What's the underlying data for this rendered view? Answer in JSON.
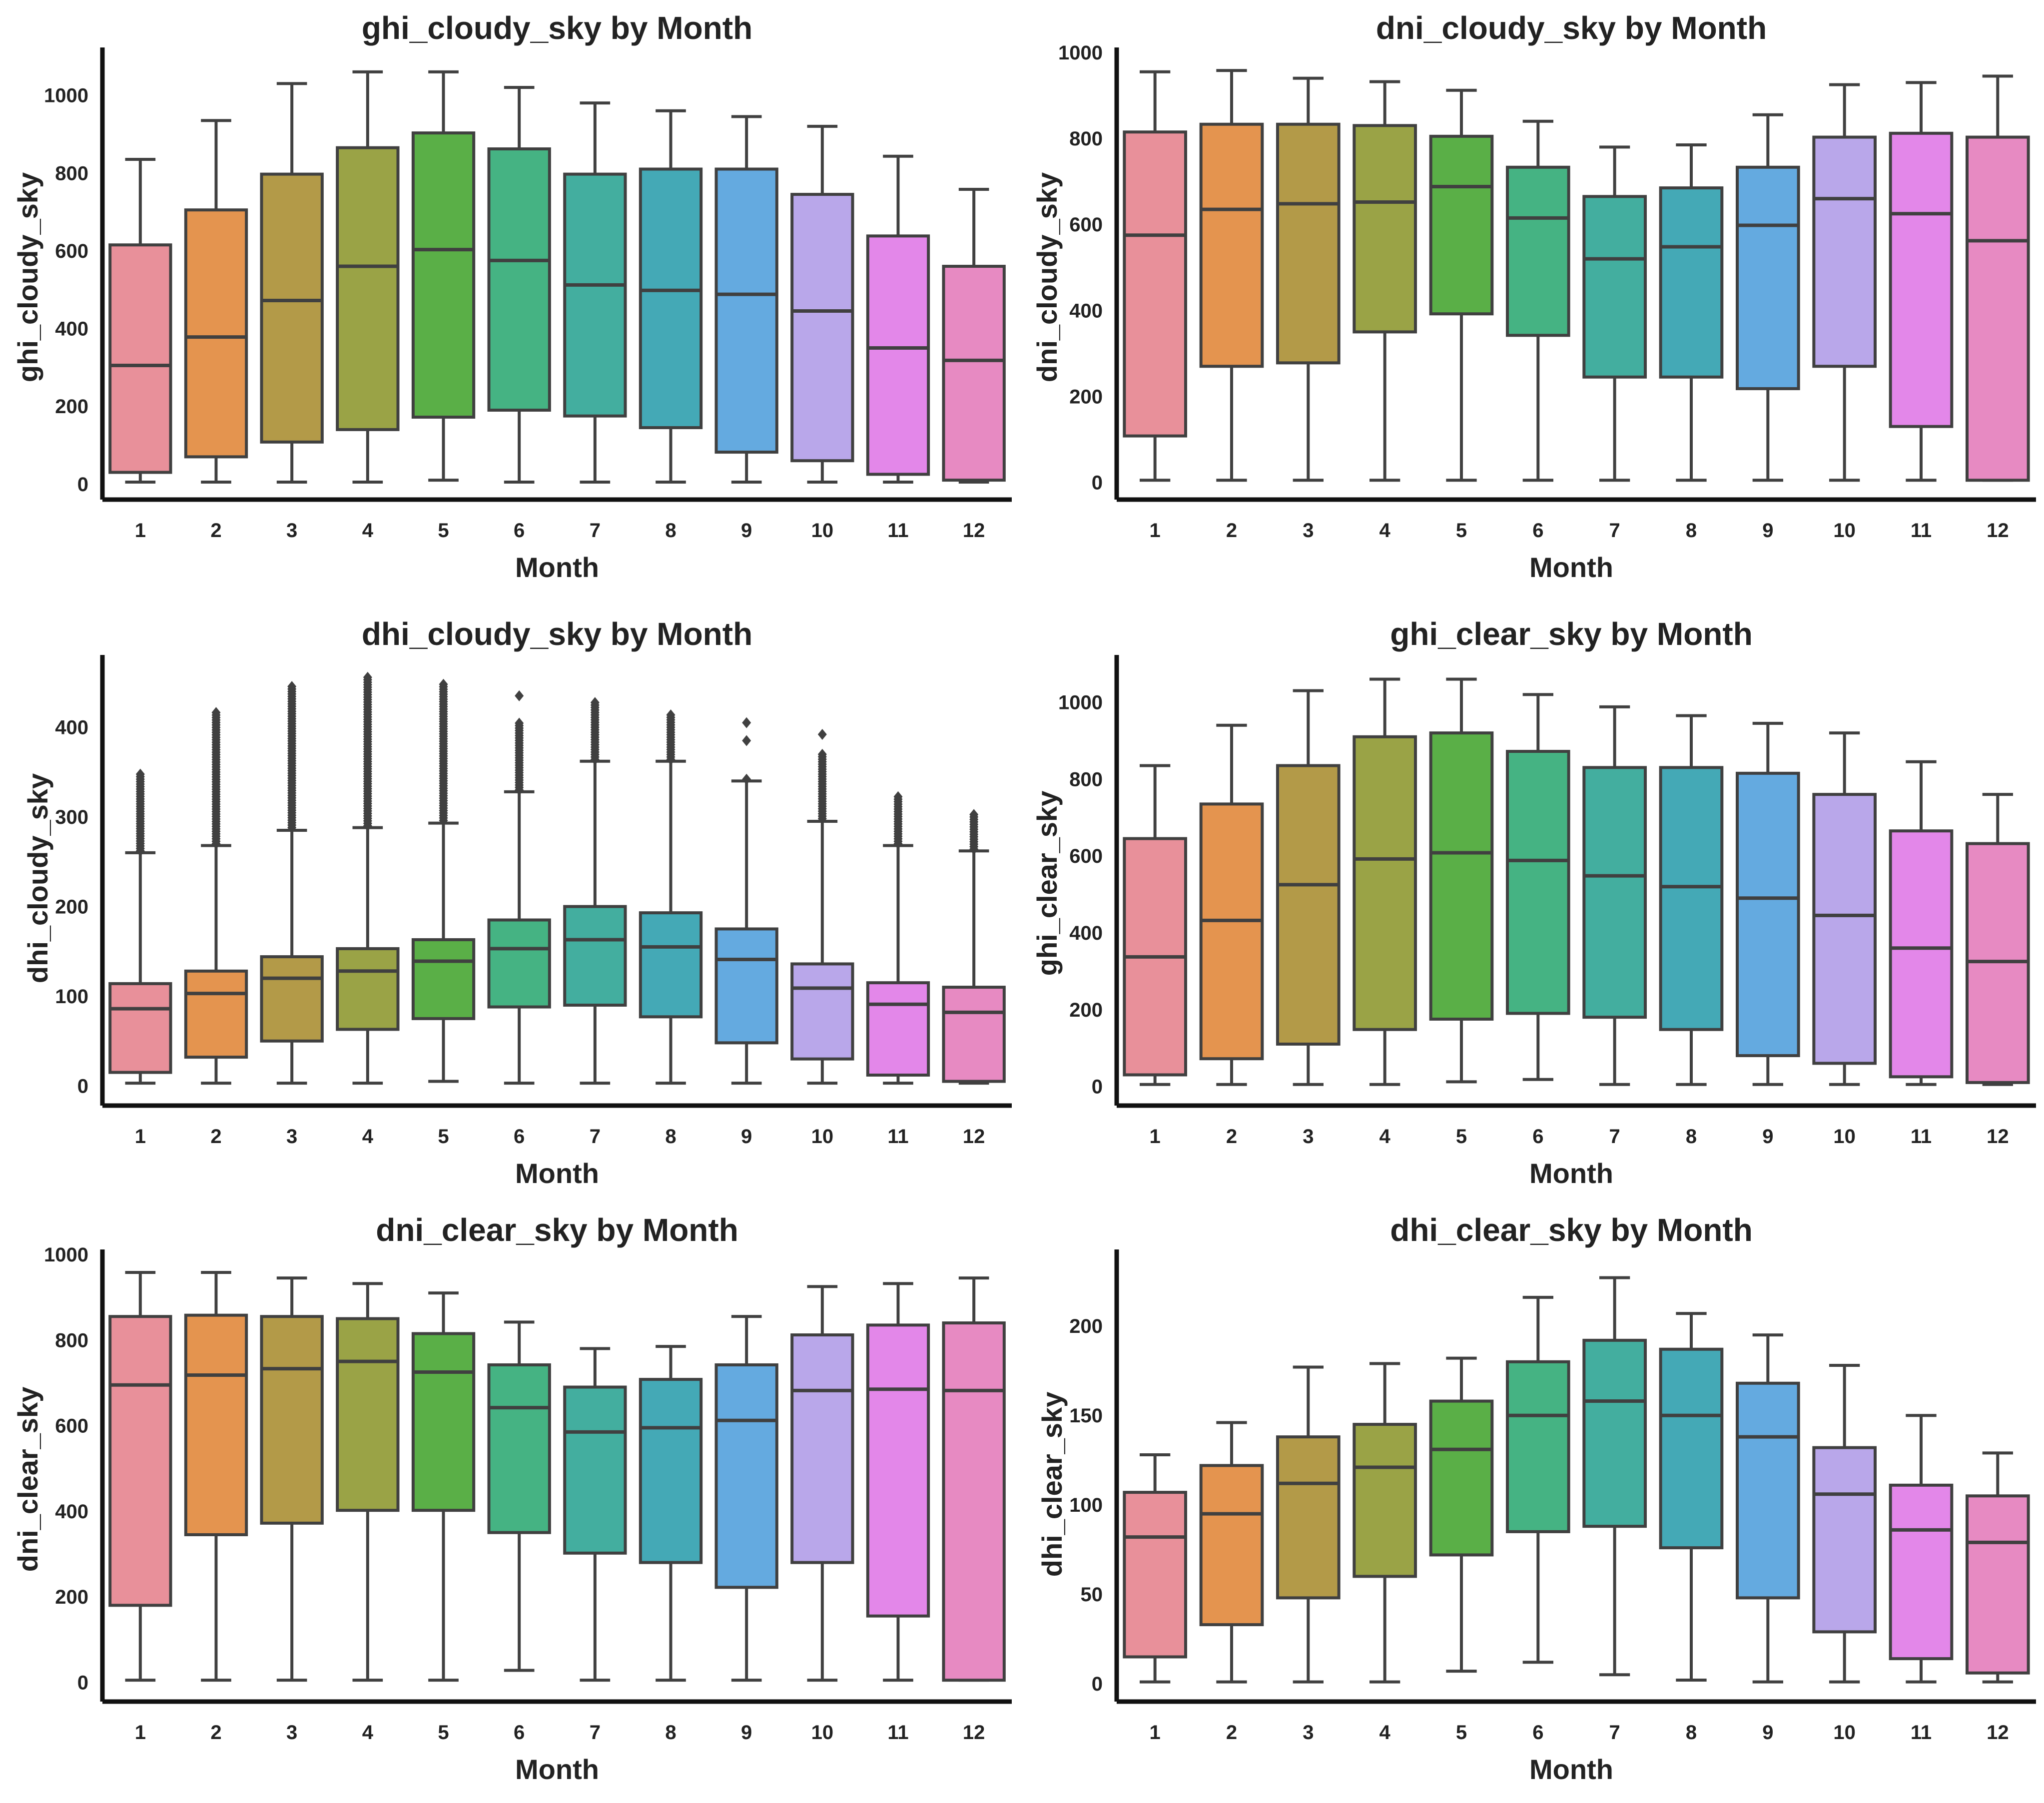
{
  "chart_data": [
    {
      "type": "box",
      "title": "ghi_cloudy_sky by Month",
      "xlabel": "Month",
      "ylabel": "ghi_cloudy_sky",
      "ylim": [
        -40,
        1110
      ],
      "yticks": [
        "0",
        "200",
        "400",
        "600",
        "800",
        "1000"
      ],
      "ytick_values": [
        0,
        200,
        400,
        600,
        800,
        1000
      ],
      "categories": [
        "1",
        "2",
        "3",
        "4",
        "5",
        "6",
        "7",
        "8",
        "9",
        "10",
        "11",
        "12"
      ],
      "boxes": [
        {
          "whislo": 5,
          "q1": 30,
          "med": 305,
          "q3": 615,
          "whishi": 835
        },
        {
          "whislo": 5,
          "q1": 70,
          "med": 378,
          "q3": 705,
          "whishi": 935
        },
        {
          "whislo": 5,
          "q1": 108,
          "med": 472,
          "q3": 797,
          "whishi": 1030
        },
        {
          "whislo": 5,
          "q1": 140,
          "med": 560,
          "q3": 865,
          "whishi": 1060
        },
        {
          "whislo": 10,
          "q1": 172,
          "med": 603,
          "q3": 903,
          "whishi": 1060
        },
        {
          "whislo": 5,
          "q1": 190,
          "med": 575,
          "q3": 862,
          "whishi": 1020
        },
        {
          "whislo": 5,
          "q1": 175,
          "med": 512,
          "q3": 797,
          "whishi": 980
        },
        {
          "whislo": 5,
          "q1": 145,
          "med": 498,
          "q3": 810,
          "whishi": 960
        },
        {
          "whislo": 5,
          "q1": 82,
          "med": 488,
          "q3": 810,
          "whishi": 945
        },
        {
          "whislo": 5,
          "q1": 60,
          "med": 445,
          "q3": 745,
          "whishi": 920
        },
        {
          "whislo": 5,
          "q1": 25,
          "med": 350,
          "q3": 638,
          "whishi": 843
        },
        {
          "whislo": 5,
          "q1": 10,
          "med": 318,
          "q3": 560,
          "whishi": 758
        }
      ],
      "outliers": [
        [],
        [],
        [],
        [],
        [],
        [],
        [],
        [],
        [],
        [],
        [],
        []
      ]
    },
    {
      "type": "box",
      "title": "dni_cloudy_sky by Month",
      "xlabel": "Month",
      "ylabel": "dni_cloudy_sky",
      "ylim": [
        -40,
        1000
      ],
      "yticks": [
        "0",
        "200",
        "400",
        "600",
        "800",
        "1000"
      ],
      "ytick_values": [
        0,
        200,
        400,
        600,
        800,
        1000
      ],
      "categories": [
        "1",
        "2",
        "3",
        "4",
        "5",
        "6",
        "7",
        "8",
        "9",
        "10",
        "11",
        "12"
      ],
      "boxes": [
        {
          "whislo": 5,
          "q1": 108,
          "med": 575,
          "q3": 815,
          "whishi": 955
        },
        {
          "whislo": 5,
          "q1": 270,
          "med": 635,
          "q3": 833,
          "whishi": 958
        },
        {
          "whislo": 5,
          "q1": 278,
          "med": 648,
          "q3": 833,
          "whishi": 940
        },
        {
          "whislo": 5,
          "q1": 350,
          "med": 652,
          "q3": 830,
          "whishi": 932
        },
        {
          "whislo": 5,
          "q1": 392,
          "med": 688,
          "q3": 805,
          "whishi": 912
        },
        {
          "whislo": 5,
          "q1": 342,
          "med": 615,
          "q3": 733,
          "whishi": 840
        },
        {
          "whislo": 5,
          "q1": 245,
          "med": 520,
          "q3": 665,
          "whishi": 780
        },
        {
          "whislo": 5,
          "q1": 245,
          "med": 548,
          "q3": 685,
          "whishi": 785
        },
        {
          "whislo": 5,
          "q1": 218,
          "med": 598,
          "q3": 733,
          "whishi": 855
        },
        {
          "whislo": 5,
          "q1": 270,
          "med": 660,
          "q3": 803,
          "whishi": 925
        },
        {
          "whislo": 5,
          "q1": 130,
          "med": 625,
          "q3": 812,
          "whishi": 930
        },
        {
          "whislo": 5,
          "q1": 5,
          "med": 562,
          "q3": 803,
          "whishi": 945
        }
      ],
      "outliers": [
        [],
        [],
        [],
        [],
        [],
        [],
        [],
        [],
        [],
        [],
        [],
        []
      ]
    },
    {
      "type": "box",
      "title": "dhi_cloudy_sky by Month",
      "xlabel": "Month",
      "ylabel": "dhi_cloudy_sky",
      "ylim": [
        -22,
        475
      ],
      "yticks": [
        "0",
        "100",
        "200",
        "300",
        "400"
      ],
      "ytick_values": [
        0,
        100,
        200,
        300,
        400
      ],
      "categories": [
        "1",
        "2",
        "3",
        "4",
        "5",
        "6",
        "7",
        "8",
        "9",
        "10",
        "11",
        "12"
      ],
      "boxes": [
        {
          "whislo": 3,
          "q1": 15,
          "med": 86,
          "q3": 114,
          "whishi": 260
        },
        {
          "whislo": 3,
          "q1": 32,
          "med": 103,
          "q3": 128,
          "whishi": 268
        },
        {
          "whislo": 3,
          "q1": 50,
          "med": 120,
          "q3": 144,
          "whishi": 285
        },
        {
          "whislo": 3,
          "q1": 63,
          "med": 128,
          "q3": 153,
          "whishi": 288
        },
        {
          "whislo": 5,
          "q1": 75,
          "med": 139,
          "q3": 163,
          "whishi": 293
        },
        {
          "whislo": 3,
          "q1": 88,
          "med": 153,
          "q3": 185,
          "whishi": 328
        },
        {
          "whislo": 3,
          "q1": 90,
          "med": 163,
          "q3": 200,
          "whishi": 362
        },
        {
          "whislo": 3,
          "q1": 77,
          "med": 155,
          "q3": 193,
          "whishi": 362
        },
        {
          "whislo": 3,
          "q1": 48,
          "med": 141,
          "q3": 175,
          "whishi": 340
        },
        {
          "whislo": 3,
          "q1": 30,
          "med": 109,
          "q3": 136,
          "whishi": 295
        },
        {
          "whislo": 3,
          "q1": 12,
          "med": 91,
          "q3": 115,
          "whishi": 268
        },
        {
          "whislo": 3,
          "q1": 5,
          "med": 82,
          "q3": 110,
          "whishi": 262
        }
      ],
      "outliers": [
        {
          "from": 262,
          "to": 348
        },
        {
          "from": 270,
          "to": 418
        },
        {
          "from": 288,
          "to": 448
        },
        {
          "from": 290,
          "to": 458
        },
        {
          "from": 296,
          "to": 450
        },
        {
          "from": 330,
          "to": 405,
          "extra": [
            435
          ]
        },
        {
          "from": 364,
          "to": 428
        },
        {
          "from": 364,
          "to": 415
        },
        {
          "from": 342,
          "to": 342,
          "extra": [
            385,
            405
          ]
        },
        {
          "from": 298,
          "to": 370,
          "extra": [
            392
          ]
        },
        {
          "from": 270,
          "to": 325
        },
        {
          "from": 264,
          "to": 305
        }
      ]
    },
    {
      "type": "box",
      "title": "ghi_clear_sky by Month",
      "xlabel": "Month",
      "ylabel": "ghi_clear_sky",
      "ylim": [
        -50,
        1110
      ],
      "yticks": [
        "0",
        "200",
        "400",
        "600",
        "800",
        "1000"
      ],
      "ytick_values": [
        0,
        200,
        400,
        600,
        800,
        1000
      ],
      "categories": [
        "1",
        "2",
        "3",
        "4",
        "5",
        "6",
        "7",
        "8",
        "9",
        "10",
        "11",
        "12"
      ],
      "boxes": [
        {
          "whislo": 5,
          "q1": 30,
          "med": 337,
          "q3": 645,
          "whishi": 835
        },
        {
          "whislo": 5,
          "q1": 72,
          "med": 432,
          "q3": 735,
          "whishi": 940
        },
        {
          "whislo": 5,
          "q1": 110,
          "med": 525,
          "q3": 835,
          "whishi": 1030
        },
        {
          "whislo": 5,
          "q1": 148,
          "med": 592,
          "q3": 910,
          "whishi": 1060
        },
        {
          "whislo": 12,
          "q1": 175,
          "med": 608,
          "q3": 920,
          "whishi": 1060
        },
        {
          "whislo": 18,
          "q1": 190,
          "med": 588,
          "q3": 872,
          "whishi": 1020
        },
        {
          "whislo": 5,
          "q1": 180,
          "med": 548,
          "q3": 830,
          "whishi": 988
        },
        {
          "whislo": 5,
          "q1": 148,
          "med": 520,
          "q3": 830,
          "whishi": 965
        },
        {
          "whislo": 5,
          "q1": 80,
          "med": 490,
          "q3": 815,
          "whishi": 945
        },
        {
          "whislo": 5,
          "q1": 60,
          "med": 445,
          "q3": 760,
          "whishi": 920
        },
        {
          "whislo": 5,
          "q1": 25,
          "med": 360,
          "q3": 665,
          "whishi": 845
        },
        {
          "whislo": 5,
          "q1": 10,
          "med": 325,
          "q3": 632,
          "whishi": 760
        }
      ],
      "outliers": [
        [],
        [],
        [],
        [],
        [],
        [],
        [],
        [],
        [],
        [],
        [],
        []
      ]
    },
    {
      "type": "box",
      "title": "dni_clear_sky by Month",
      "xlabel": "Month",
      "ylabel": "dni_clear_sky",
      "ylim": [
        -45,
        1000
      ],
      "yticks": [
        "0",
        "200",
        "400",
        "600",
        "800",
        "1000"
      ],
      "ytick_values": [
        0,
        200,
        400,
        600,
        800,
        1000
      ],
      "categories": [
        "1",
        "2",
        "3",
        "4",
        "5",
        "6",
        "7",
        "8",
        "9",
        "10",
        "11",
        "12"
      ],
      "boxes": [
        {
          "whislo": 5,
          "q1": 180,
          "med": 695,
          "q3": 855,
          "whishi": 958
        },
        {
          "whislo": 5,
          "q1": 345,
          "med": 718,
          "q3": 858,
          "whishi": 958
        },
        {
          "whislo": 5,
          "q1": 372,
          "med": 733,
          "q3": 855,
          "whishi": 945
        },
        {
          "whislo": 5,
          "q1": 402,
          "med": 750,
          "q3": 850,
          "whishi": 932
        },
        {
          "whislo": 5,
          "q1": 402,
          "med": 725,
          "q3": 815,
          "whishi": 910
        },
        {
          "whislo": 28,
          "q1": 350,
          "med": 642,
          "q3": 742,
          "whishi": 842
        },
        {
          "whislo": 5,
          "q1": 302,
          "med": 585,
          "q3": 690,
          "whishi": 780
        },
        {
          "whislo": 5,
          "q1": 280,
          "med": 595,
          "q3": 708,
          "whishi": 785
        },
        {
          "whislo": 5,
          "q1": 222,
          "med": 612,
          "q3": 742,
          "whishi": 855
        },
        {
          "whislo": 5,
          "q1": 280,
          "med": 682,
          "q3": 812,
          "whishi": 925
        },
        {
          "whislo": 5,
          "q1": 155,
          "med": 685,
          "q3": 835,
          "whishi": 932
        },
        {
          "whislo": 5,
          "q1": 5,
          "med": 682,
          "q3": 840,
          "whishi": 945
        }
      ],
      "outliers": [
        [],
        [],
        [],
        [],
        [],
        [],
        [],
        [],
        [],
        [],
        [],
        []
      ]
    },
    {
      "type": "box",
      "title": "dhi_clear_sky by Month",
      "xlabel": "Month",
      "ylabel": "dhi_clear_sky",
      "ylim": [
        -10,
        240
      ],
      "yticks": [
        "0",
        "50",
        "100",
        "150",
        "200"
      ],
      "ytick_values": [
        0,
        50,
        100,
        150,
        200
      ],
      "categories": [
        "1",
        "2",
        "3",
        "4",
        "5",
        "6",
        "7",
        "8",
        "9",
        "10",
        "11",
        "12"
      ],
      "boxes": [
        {
          "whislo": 1,
          "q1": 15,
          "med": 82,
          "q3": 107,
          "whishi": 128
        },
        {
          "whislo": 1,
          "q1": 33,
          "med": 95,
          "q3": 122,
          "whishi": 146
        },
        {
          "whislo": 1,
          "q1": 48,
          "med": 112,
          "q3": 138,
          "whishi": 177
        },
        {
          "whislo": 1,
          "q1": 60,
          "med": 121,
          "q3": 145,
          "whishi": 179
        },
        {
          "whislo": 7,
          "q1": 72,
          "med": 131,
          "q3": 158,
          "whishi": 182
        },
        {
          "whislo": 12,
          "q1": 85,
          "med": 150,
          "q3": 180,
          "whishi": 216
        },
        {
          "whislo": 5,
          "q1": 88,
          "med": 158,
          "q3": 192,
          "whishi": 227
        },
        {
          "whislo": 2,
          "q1": 76,
          "med": 150,
          "q3": 187,
          "whishi": 207
        },
        {
          "whislo": 1,
          "q1": 48,
          "med": 138,
          "q3": 168,
          "whishi": 195
        },
        {
          "whislo": 1,
          "q1": 29,
          "med": 106,
          "q3": 132,
          "whishi": 178
        },
        {
          "whislo": 1,
          "q1": 14,
          "med": 86,
          "q3": 111,
          "whishi": 150
        },
        {
          "whislo": 1,
          "q1": 6,
          "med": 79,
          "q3": 105,
          "whishi": 129
        }
      ],
      "outliers": [
        [],
        [],
        [],
        [],
        [],
        [],
        [],
        [],
        [],
        [],
        [],
        []
      ]
    }
  ],
  "palette": [
    "#e8909a",
    "#e4944f",
    "#b39a48",
    "#9aa346",
    "#5aaf47",
    "#45b383",
    "#43ae9f",
    "#44a9b6",
    "#64aae0",
    "#b9a7ea",
    "#e387e9",
    "#e78ac2"
  ],
  "line_color": "#404040"
}
